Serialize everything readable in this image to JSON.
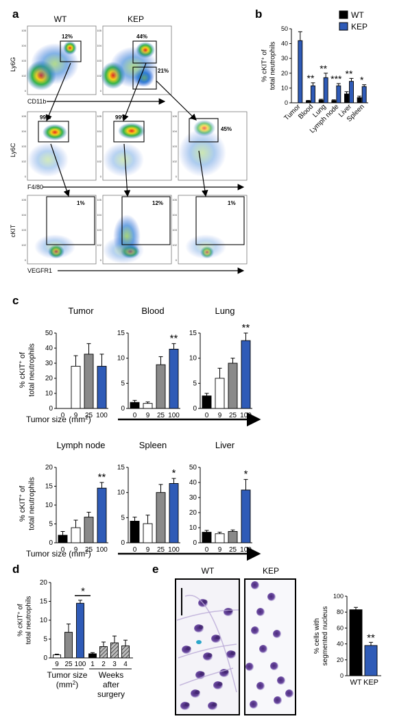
{
  "colors": {
    "wt": "#000000",
    "kep": "#2f5bb7",
    "open": "#ffffff",
    "gray": "#8a8a8a",
    "hatch": "#5a5a5a"
  },
  "panel_a": {
    "letter": "a",
    "col_labels": [
      "WT",
      "KEP"
    ],
    "row1": {
      "ylabel": "Ly6G",
      "xlabel": "CD11b",
      "gates": [
        "12%",
        "44%",
        "21%"
      ]
    },
    "row2": {
      "ylabel": "Ly6C",
      "xlabel": "F4/80",
      "gates": [
        "99%",
        "99%",
        "45%"
      ]
    },
    "row3": {
      "ylabel": "cKIT",
      "xlabel": "VEGFR1",
      "gates": [
        "1%",
        "12%",
        "1%"
      ]
    },
    "ticks": [
      "10^5",
      "10^4",
      "10^3",
      "10^2",
      "0"
    ]
  },
  "chart_data": [
    {
      "panel": "b",
      "type": "bar",
      "ylabel": "% cKIT+ of total neutrophils",
      "ylim": [
        0,
        50
      ],
      "yticks": [
        0,
        10,
        20,
        30,
        40,
        50
      ],
      "categories": [
        "Tumor",
        "Blood",
        "Lung",
        "Lymph node",
        "Liver",
        "Spleen"
      ],
      "series": [
        {
          "name": "WT",
          "values": [
            null,
            1.2,
            1.8,
            1.5,
            6,
            3.5
          ],
          "errors": [
            0,
            0.4,
            0.6,
            0.5,
            1.5,
            1
          ]
        },
        {
          "name": "KEP",
          "values": [
            42,
            11.5,
            17,
            11.5,
            14.5,
            11
          ],
          "errors": [
            6,
            2,
            3,
            1.5,
            2,
            1.2
          ]
        }
      ],
      "significance": [
        "",
        "**",
        "**",
        "***",
        "**",
        "*"
      ]
    },
    {
      "panel": "c",
      "type": "bar",
      "ylabel": "% cKIT+ of total neutrophils",
      "xlabel": "Tumor size (mm2)",
      "groups": [
        {
          "title": "Tumor",
          "categories": [
            "0",
            "9",
            "25",
            "100"
          ],
          "values": [
            null,
            28,
            36,
            28
          ],
          "errors": [
            0,
            7,
            7,
            8
          ],
          "ylim": [
            0,
            50
          ],
          "yticks": [
            0,
            10,
            20,
            30,
            40,
            50
          ],
          "sig": ""
        },
        {
          "title": "Blood",
          "categories": [
            "0",
            "9",
            "25",
            "100"
          ],
          "values": [
            1.2,
            1,
            8.7,
            11.8
          ],
          "errors": [
            0.4,
            0.3,
            1.6,
            1.1
          ],
          "ylim": [
            0,
            15
          ],
          "yticks": [
            0,
            5,
            10,
            15
          ],
          "sig": "**"
        },
        {
          "title": "Lung",
          "categories": [
            "0",
            "9",
            "25",
            "100"
          ],
          "values": [
            2.5,
            6,
            9,
            13.5
          ],
          "errors": [
            0.5,
            2,
            1,
            1.5
          ],
          "ylim": [
            0,
            15
          ],
          "yticks": [
            0,
            5,
            10,
            15
          ],
          "sig": "**"
        },
        {
          "title": "Lymph node",
          "categories": [
            "0",
            "9",
            "25",
            "100"
          ],
          "values": [
            2,
            4,
            6.8,
            14.5
          ],
          "errors": [
            1,
            2,
            1.3,
            1.5
          ],
          "ylim": [
            0,
            20
          ],
          "yticks": [
            0,
            5,
            10,
            15,
            20
          ],
          "sig": "**"
        },
        {
          "title": "Spleen",
          "categories": [
            "0",
            "9",
            "25",
            "100"
          ],
          "values": [
            4.3,
            3.8,
            10,
            11.8
          ],
          "errors": [
            0.8,
            1.7,
            1.6,
            1
          ],
          "ylim": [
            0,
            15
          ],
          "yticks": [
            0,
            5,
            10,
            15
          ],
          "sig": "*"
        },
        {
          "title": "Liver",
          "categories": [
            "0",
            "9",
            "25",
            "100"
          ],
          "values": [
            7,
            6,
            7.5,
            35
          ],
          "errors": [
            1.2,
            1,
            1,
            7
          ],
          "ylim": [
            0,
            50
          ],
          "yticks": [
            0,
            10,
            20,
            30,
            40,
            50
          ],
          "sig": "*"
        }
      ]
    },
    {
      "panel": "d",
      "type": "bar",
      "ylabel": "% cKIT+ of total neutrophils",
      "ylim": [
        0,
        20
      ],
      "yticks": [
        0,
        5,
        10,
        15,
        20
      ],
      "categories": [
        "9",
        "25",
        "100",
        "1",
        "2",
        "3",
        "4"
      ],
      "values": [
        0.8,
        6.8,
        14.5,
        1.1,
        3,
        4,
        3.2
      ],
      "errors": [
        0.2,
        2.2,
        0.8,
        0.3,
        1.2,
        1.8,
        1.5
      ],
      "group_labels": [
        "Tumor size",
        "(mm2)",
        "Weeks",
        "after",
        "surgery"
      ],
      "significance": "*"
    },
    {
      "panel": "e",
      "type": "bar",
      "ylabel": "% cells with segmented nucleus",
      "ylim": [
        0,
        100
      ],
      "yticks": [
        0,
        20,
        40,
        60,
        80,
        100
      ],
      "categories": [
        "WT",
        "KEP"
      ],
      "values": [
        83,
        38
      ],
      "errors": [
        3,
        4
      ],
      "significance": "**"
    }
  ],
  "panel_e": {
    "letter": "e",
    "image_labels": [
      "WT",
      "KEP"
    ]
  },
  "letters": {
    "b": "b",
    "c": "c",
    "d": "d"
  }
}
